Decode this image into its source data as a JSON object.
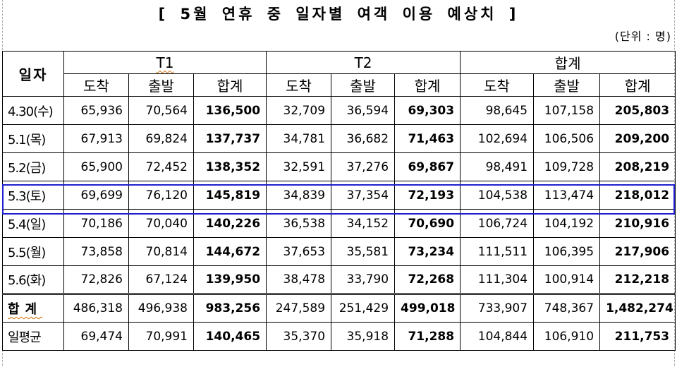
{
  "title": "[ 5월 연휴 중 일자별 여객 이용 예상치 ]",
  "unit": "(단위 : 명)",
  "header": {
    "day_label": "일자",
    "groups": [
      "T1",
      "T2",
      "합계"
    ],
    "sub": [
      "도착",
      "출발",
      "합계",
      "도착",
      "출발",
      "합계",
      "도착",
      "출발",
      "합계"
    ]
  },
  "rows": [
    {
      "day": "4.30(수)",
      "values": [
        "65,936",
        "70,564",
        "136,500",
        "32,709",
        "36,594",
        "69,303",
        "98,645",
        "107,158",
        "205,803"
      ]
    },
    {
      "day": "5.1(목)",
      "values": [
        "67,913",
        "69,824",
        "137,737",
        "34,781",
        "36,682",
        "71,463",
        "102,694",
        "106,506",
        "209,200"
      ]
    },
    {
      "day": "5.2(금)",
      "values": [
        "65,900",
        "72,452",
        "138,352",
        "32,591",
        "37,276",
        "69,867",
        "98,491",
        "109,728",
        "208,219"
      ]
    },
    {
      "day": "5.3(토)",
      "values": [
        "69,699",
        "76,120",
        "145,819",
        "34,839",
        "37,354",
        "72,193",
        "104,538",
        "113,474",
        "218,012"
      ]
    },
    {
      "day": "5.4(일)",
      "values": [
        "70,186",
        "70,040",
        "140,226",
        "36,538",
        "34,152",
        "70,690",
        "106,724",
        "104,192",
        "210,916"
      ]
    },
    {
      "day": "5.5(월)",
      "values": [
        "73,858",
        "70,814",
        "144,672",
        "37,653",
        "35,581",
        "73,234",
        "111,511",
        "106,395",
        "217,906"
      ]
    },
    {
      "day": "5.6(화)",
      "values": [
        "72,826",
        "67,124",
        "139,950",
        "38,478",
        "33,790",
        "72,268",
        "111,304",
        "100,914",
        "212,218"
      ]
    }
  ],
  "total": {
    "day": "합계",
    "values": [
      "486,318",
      "496,938",
      "983,256",
      "247,589",
      "251,429",
      "499,018",
      "733,907",
      "748,367",
      "1,482,274"
    ]
  },
  "average": {
    "day": "일평균",
    "values": [
      "69,474",
      "70,991",
      "140,465",
      "35,370",
      "35,918",
      "71,288",
      "104,844",
      "106,910",
      "211,753"
    ]
  },
  "highlight_color": "#1f1fd0"
}
